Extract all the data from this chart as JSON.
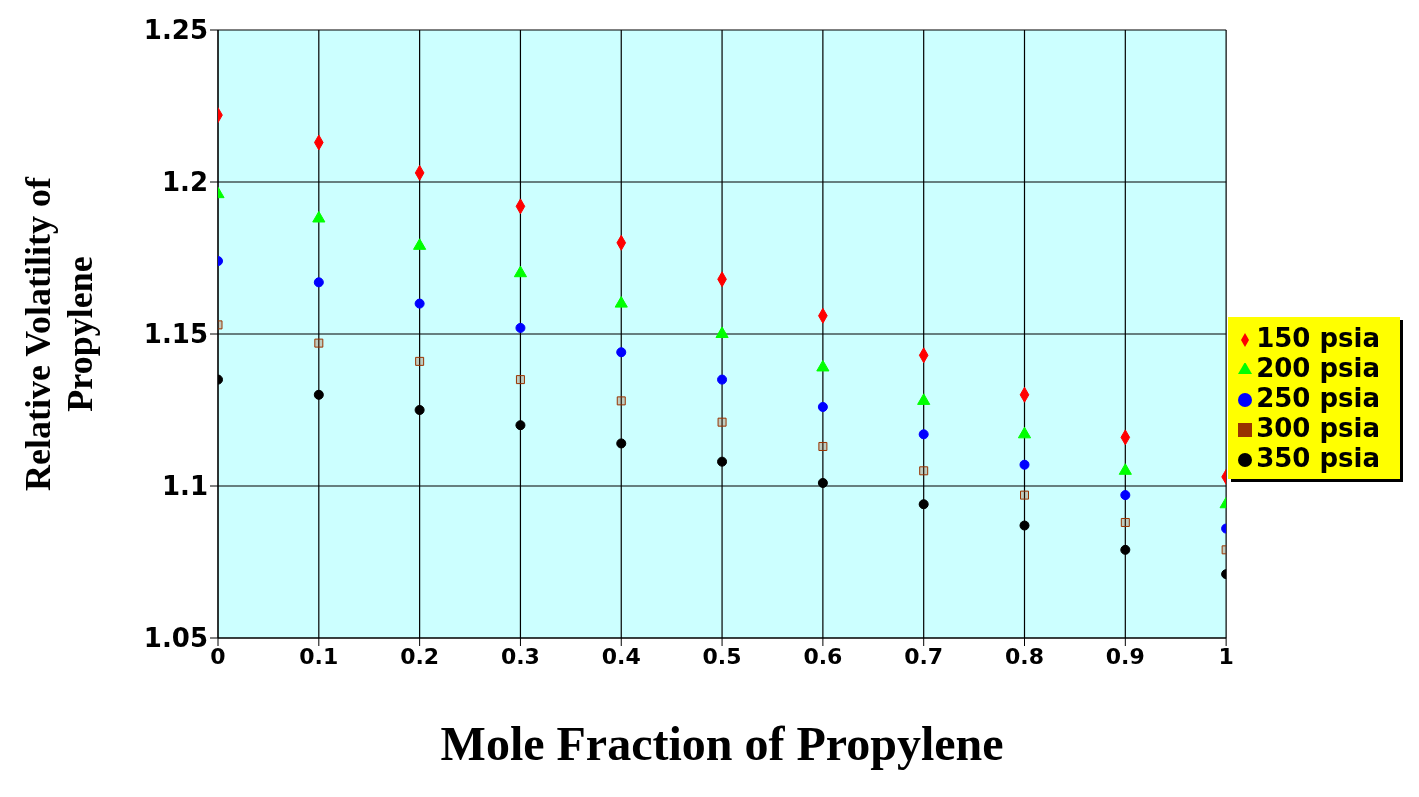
{
  "chart_data": {
    "type": "scatter",
    "xlabel": "Mole Fraction of Propylene",
    "ylabel": "Relative Volatility of Propylene",
    "x": [
      0,
      0.1,
      0.2,
      0.3,
      0.4,
      0.5,
      0.6,
      0.7,
      0.8,
      0.9,
      1
    ],
    "series": [
      {
        "name": "150 psia",
        "color": "#ff0000",
        "marker": "diamond",
        "values": [
          1.222,
          1.213,
          1.203,
          1.192,
          1.18,
          1.168,
          1.156,
          1.143,
          1.13,
          1.116,
          1.103
        ]
      },
      {
        "name": "200 psia",
        "color": "#00ff00",
        "marker": "triangle",
        "values": [
          1.196,
          1.188,
          1.179,
          1.17,
          1.16,
          1.15,
          1.139,
          1.128,
          1.117,
          1.105,
          1.094
        ]
      },
      {
        "name": "250 psia",
        "color": "#0000ff",
        "marker": "circle",
        "values": [
          1.174,
          1.167,
          1.16,
          1.152,
          1.144,
          1.135,
          1.126,
          1.117,
          1.107,
          1.097,
          1.086
        ]
      },
      {
        "name": "300 psia",
        "color": "#993300",
        "marker": "square",
        "values": [
          1.153,
          1.147,
          1.141,
          1.135,
          1.128,
          1.121,
          1.113,
          1.105,
          1.097,
          1.088,
          1.079
        ]
      },
      {
        "name": "350 psia",
        "color": "#000000",
        "marker": "circle",
        "values": [
          1.135,
          1.13,
          1.125,
          1.12,
          1.114,
          1.108,
          1.101,
          1.094,
          1.087,
          1.079,
          1.071
        ]
      }
    ],
    "xlim": [
      0,
      1
    ],
    "xticks": [
      0,
      0.1,
      0.2,
      0.3,
      0.4,
      0.5,
      0.6,
      0.7,
      0.8,
      0.9,
      1
    ],
    "ylim": [
      1.05,
      1.25
    ],
    "yticks": [
      1.05,
      1.1,
      1.15,
      1.2,
      1.25
    ],
    "grid": true,
    "legend": "right"
  }
}
